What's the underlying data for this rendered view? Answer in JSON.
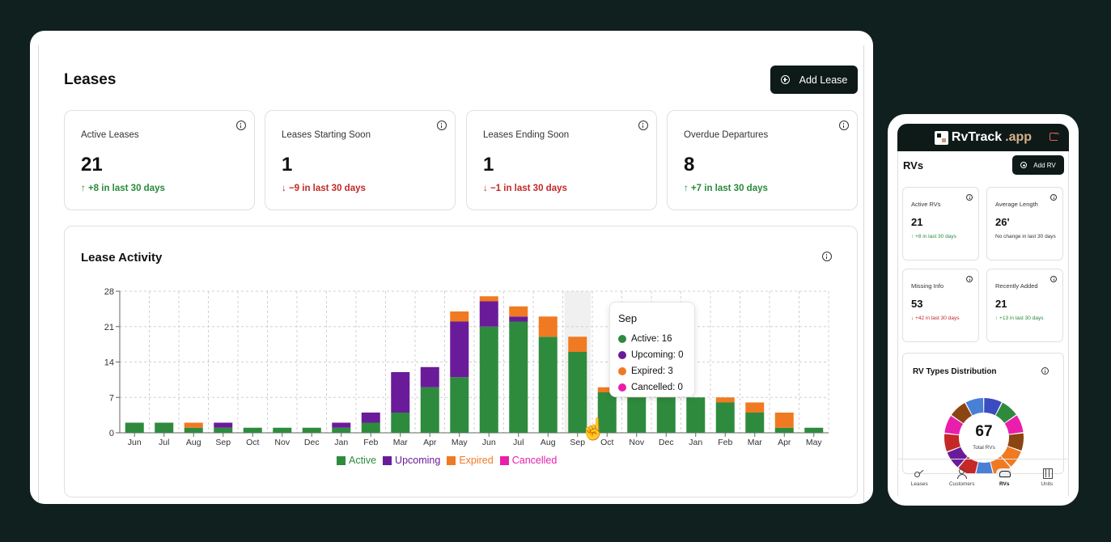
{
  "desktop": {
    "title": "Leases",
    "add_button": "Add Lease",
    "stats": [
      {
        "label": "Active Leases",
        "value": "21",
        "change": "↑ +8 in last 30 days",
        "trend": "up"
      },
      {
        "label": "Leases Starting Soon",
        "value": "1",
        "change": "↓ −9 in last 30 days",
        "trend": "down"
      },
      {
        "label": "Leases Ending Soon",
        "value": "1",
        "change": "↓ −1 in last 30 days",
        "trend": "down"
      },
      {
        "label": "Overdue Departures",
        "value": "8",
        "change": "↑ +7 in last 30 days",
        "trend": "up"
      }
    ],
    "activity_title": "Lease Activity",
    "tooltip": {
      "title": "Sep",
      "rows": [
        {
          "label": "Active: 16",
          "color": "#2e8b3e"
        },
        {
          "label": "Upcoming: 0",
          "color": "#6a1b9a"
        },
        {
          "label": "Expired: 3",
          "color": "#f07a22"
        },
        {
          "label": "Cancelled: 0",
          "color": "#e91eac"
        }
      ]
    }
  },
  "chart_data": {
    "type": "bar",
    "stacked": true,
    "categories": [
      "Jun",
      "Jul",
      "Aug",
      "Sep",
      "Oct",
      "Nov",
      "Dec",
      "Jan",
      "Feb",
      "Mar",
      "Apr",
      "May",
      "Jun",
      "Jul",
      "Aug",
      "Sep",
      "Oct",
      "Nov",
      "Dec",
      "Jan",
      "Feb",
      "Mar",
      "Apr",
      "May"
    ],
    "series": [
      {
        "name": "Active",
        "color": "#2e8b3e",
        "values": [
          2,
          2,
          1,
          1,
          1,
          1,
          1,
          1,
          2,
          4,
          9,
          11,
          21,
          22,
          19,
          16,
          8,
          7,
          7,
          7,
          6,
          4,
          1,
          1
        ]
      },
      {
        "name": "Upcoming",
        "color": "#6a1b9a",
        "values": [
          0,
          0,
          0,
          1,
          0,
          0,
          0,
          1,
          2,
          8,
          4,
          11,
          5,
          1,
          0,
          0,
          0,
          0,
          0,
          0,
          0,
          0,
          0,
          0
        ]
      },
      {
        "name": "Expired",
        "color": "#f07a22",
        "values": [
          0,
          0,
          1,
          0,
          0,
          0,
          0,
          0,
          0,
          0,
          0,
          2,
          1,
          2,
          4,
          3,
          1,
          1,
          1,
          0,
          1,
          2,
          3,
          0
        ]
      },
      {
        "name": "Cancelled",
        "color": "#e91eac",
        "values": [
          0,
          0,
          0,
          0,
          0,
          0,
          0,
          0,
          0,
          0,
          0,
          0,
          0,
          0,
          0,
          0,
          0,
          0,
          0,
          0,
          0,
          0,
          0,
          0
        ]
      }
    ],
    "ylim": [
      0,
      28
    ],
    "yticks": [
      0,
      7,
      14,
      21,
      28
    ],
    "grid": true,
    "legend": "bottom",
    "highlight_index": 15
  },
  "mobile": {
    "brand_main": "RvTrack",
    "brand_accent": ".app",
    "title": "RVs",
    "add_button": "Add RV",
    "stats": [
      {
        "label": "Active RVs",
        "value": "21",
        "change": "↑ +8 in last 30 days",
        "trend": "up"
      },
      {
        "label": "Average Length",
        "value": "26'",
        "change": "No change in last 30 days",
        "trend": "neutral"
      },
      {
        "label": "Missing Info",
        "value": "53",
        "change": "↓ +42 in last 30 days",
        "trend": "down"
      },
      {
        "label": "Recently Added",
        "value": "21",
        "change": "↑ +13 in last 30 days",
        "trend": "up"
      }
    ],
    "distribution_title": "RV Types Distribution",
    "donut_total": "67",
    "donut_label": "Total RVs",
    "donut_colors": [
      "#3b4cc0",
      "#2e8b3e",
      "#e91eac",
      "#8b4513",
      "#f07a22",
      "#f07a22",
      "#4a7fd6",
      "#c62828",
      "#6a1b9a",
      "#c62828",
      "#e91eac",
      "#8b4513",
      "#4a7fd6"
    ],
    "nav": [
      {
        "label": "Leases",
        "icon": "key-icon"
      },
      {
        "label": "Customers",
        "icon": "people-icon"
      },
      {
        "label": "RVs",
        "icon": "car-icon"
      },
      {
        "label": "Units",
        "icon": "map-icon"
      }
    ]
  }
}
